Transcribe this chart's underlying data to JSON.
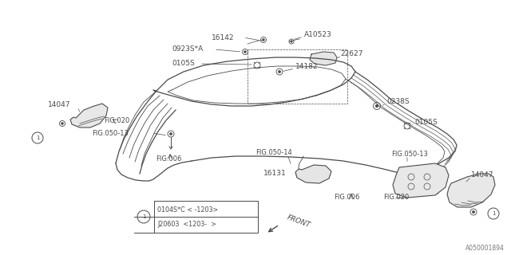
{
  "bg_color": "#ffffff",
  "line_color": "#4a4a4a",
  "watermark": "A050001894",
  "legend_row1": "0104S*C < -1203>",
  "legend_row2": "J20603  <1203- >"
}
